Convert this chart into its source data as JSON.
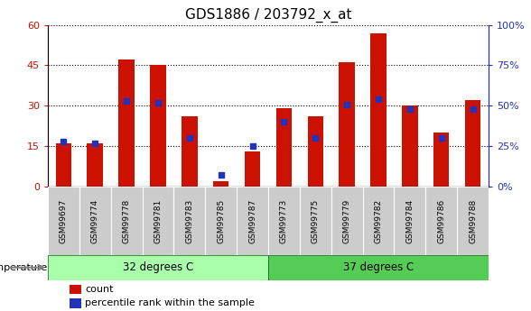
{
  "title": "GDS1886 / 203792_x_at",
  "samples": [
    "GSM99697",
    "GSM99774",
    "GSM99778",
    "GSM99781",
    "GSM99783",
    "GSM99785",
    "GSM99787",
    "GSM99773",
    "GSM99775",
    "GSM99779",
    "GSM99782",
    "GSM99784",
    "GSM99786",
    "GSM99788"
  ],
  "counts": [
    16,
    16,
    47,
    45,
    26,
    2,
    13,
    29,
    26,
    46,
    57,
    30,
    20,
    32
  ],
  "percentiles": [
    28,
    27,
    53,
    52,
    30,
    7,
    25,
    40,
    30,
    51,
    54,
    48,
    30,
    48
  ],
  "group1_label": "32 degrees C",
  "group2_label": "37 degrees C",
  "group1_count": 7,
  "group2_count": 7,
  "ylim_left": [
    0,
    60
  ],
  "ylim_right": [
    0,
    100
  ],
  "yticks_left": [
    0,
    15,
    30,
    45,
    60
  ],
  "yticks_right": [
    0,
    25,
    50,
    75,
    100
  ],
  "ytick_labels_left": [
    "0",
    "15",
    "30",
    "45",
    "60"
  ],
  "ytick_labels_right": [
    "0%",
    "25%",
    "50%",
    "75%",
    "100%"
  ],
  "bar_color": "#cc1100",
  "dot_color": "#2233bb",
  "group1_bg": "#aaffaa",
  "group2_bg": "#55cc55",
  "xticklabel_bg": "#cccccc",
  "temperature_label": "temperature",
  "legend_count": "count",
  "legend_percentile": "percentile rank within the sample",
  "title_fontsize": 11,
  "tick_fontsize": 8,
  "label_fontsize": 6.5,
  "bar_width": 0.5
}
